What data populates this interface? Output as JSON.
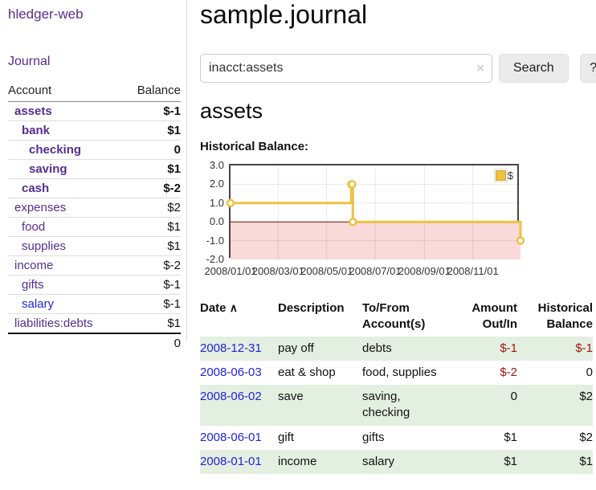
{
  "app": {
    "title": "hledger-web"
  },
  "sidebar": {
    "journal_link": "Journal",
    "table": {
      "account_header": "Account",
      "balance_header": "Balance",
      "rows": [
        {
          "name": "assets",
          "balance": "$-1",
          "indent": 1,
          "bold": true,
          "balance_class": "neg"
        },
        {
          "name": "bank",
          "balance": "$1",
          "indent": 2,
          "bold": true,
          "balance_class": ""
        },
        {
          "name": "checking",
          "balance": "0",
          "indent": 3,
          "bold": true,
          "balance_class": ""
        },
        {
          "name": "saving",
          "balance": "$1",
          "indent": 3,
          "bold": true,
          "balance_class": ""
        },
        {
          "name": "cash",
          "balance": "$-2",
          "indent": 2,
          "bold": true,
          "balance_class": "neg"
        },
        {
          "name": "expenses",
          "balance": "$2",
          "indent": 1,
          "bold": false,
          "balance_class": ""
        },
        {
          "name": "food",
          "balance": "$1",
          "indent": 2,
          "bold": false,
          "balance_class": ""
        },
        {
          "name": "supplies",
          "balance": "$1",
          "indent": 2,
          "bold": false,
          "balance_class": ""
        },
        {
          "name": "income",
          "balance": "$-2",
          "indent": 1,
          "bold": false,
          "balance_class": "negmuted"
        },
        {
          "name": "gifts",
          "balance": "$-1",
          "indent": 2,
          "bold": false,
          "balance_class": "negmuted"
        },
        {
          "name": "salary",
          "balance": "$-1",
          "indent": 2,
          "bold": false,
          "balance_class": "negmuted",
          "blue_link": true
        },
        {
          "name": "liabilities:debts",
          "balance": "$1",
          "indent": 1,
          "bold": false,
          "balance_class": ""
        }
      ],
      "total": "0"
    }
  },
  "main": {
    "title": "sample.journal",
    "search": {
      "value": "inacct:assets",
      "clear_icon": "×",
      "search_label": "Search",
      "help_label": "?"
    },
    "account_heading": "assets",
    "chart_label": "Historical Balance:"
  },
  "chart_data": {
    "type": "line",
    "title": "Historical Balance:",
    "series": [
      {
        "name": "$",
        "color": "#edc240",
        "step": true,
        "points": [
          [
            "2008-01-01",
            1
          ],
          [
            "2008-06-01",
            2
          ],
          [
            "2008-06-02",
            2
          ],
          [
            "2008-06-03",
            0
          ],
          [
            "2008-12-31",
            -1
          ]
        ]
      }
    ],
    "x_domain": [
      "2008-01-01",
      "2008-12-31"
    ],
    "ylim": [
      -2,
      3
    ],
    "y_ticks": [
      "3.0",
      "2.0",
      "1.0",
      "0.0",
      "-1.0",
      "-2.0"
    ],
    "x_ticks": [
      "2008/01/01",
      "2008/03/01",
      "2008/05/01",
      "2008/07/01",
      "2008/09/01",
      "2008/11/01"
    ],
    "legend": {
      "label": "$",
      "position": "top-right"
    },
    "grid": true,
    "negative_region_color": "#f9d9d9",
    "zero_line_color": "#7c0a02"
  },
  "register": {
    "headers": {
      "date": "Date",
      "sort_icon": "∧",
      "description": "Description",
      "accounts": "To/From Account(s)",
      "amount": "Amount Out/In",
      "balance": "Historical Balance"
    },
    "rows": [
      {
        "date": "2008-12-31",
        "description": "pay off",
        "accounts": "debts",
        "amount": "$-1",
        "amount_neg": true,
        "balance": "$-1",
        "balance_neg": true
      },
      {
        "date": "2008-06-03",
        "description": "eat & shop",
        "accounts": "food, supplies",
        "amount": "$-2",
        "amount_neg": true,
        "balance": "0",
        "balance_neg": false
      },
      {
        "date": "2008-06-02",
        "description": "save",
        "accounts": "saving, checking",
        "amount": "0",
        "amount_neg": false,
        "balance": "$2",
        "balance_neg": false
      },
      {
        "date": "2008-06-01",
        "description": "gift",
        "accounts": "gifts",
        "amount": "$1",
        "amount_neg": false,
        "balance": "$2",
        "balance_neg": false
      },
      {
        "date": "2008-01-01",
        "description": "income",
        "accounts": "salary",
        "amount": "$1",
        "amount_neg": false,
        "balance": "$1",
        "balance_neg": false
      }
    ]
  }
}
